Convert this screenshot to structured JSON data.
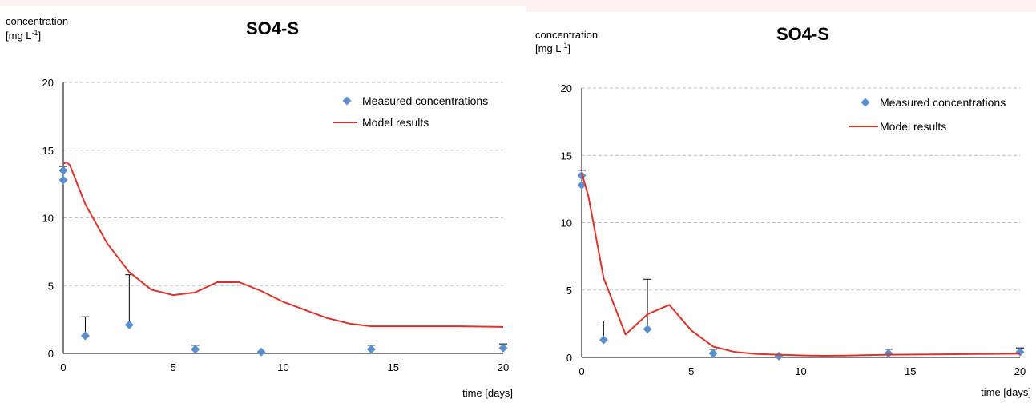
{
  "colors": {
    "measured": "#5b8fd0",
    "model": "#e0322a",
    "grid": "#bfbfbf",
    "axis": "#000000",
    "background": "#fdf1f1"
  },
  "chart_data": [
    {
      "type": "scatter",
      "title": "SO4-S",
      "ylabel_line1": "concentration",
      "ylabel_unit_prefix": "[mg L",
      "ylabel_unit_exp": "-1",
      "ylabel_unit_suffix": "]",
      "xlabel": "time [days]",
      "xlim": [
        0,
        20
      ],
      "ylim": [
        0,
        20
      ],
      "xticks": [
        0,
        5,
        10,
        15,
        20
      ],
      "yticks": [
        0,
        5,
        10,
        15,
        20
      ],
      "grid": "horizontal dashed",
      "legend_placement": "top-right",
      "series": [
        {
          "name": "Measured concentrations",
          "kind": "scatter",
          "marker": "diamond",
          "points": [
            {
              "x": 0,
              "y": 13.5,
              "err": 0.3
            },
            {
              "x": 0,
              "y": 12.8,
              "err": 0
            },
            {
              "x": 1,
              "y": 1.3,
              "err": 1.4
            },
            {
              "x": 3,
              "y": 2.1,
              "err": 3.7
            },
            {
              "x": 6,
              "y": 0.3,
              "err": 0.3
            },
            {
              "x": 9,
              "y": 0.1,
              "err": 0
            },
            {
              "x": 14,
              "y": 0.3,
              "err": 0.3
            },
            {
              "x": 20,
              "y": 0.4,
              "err": 0.3
            }
          ]
        },
        {
          "name": "Model results",
          "kind": "line",
          "points": [
            {
              "x": 0,
              "y": 14.0
            },
            {
              "x": 0.15,
              "y": 14.1
            },
            {
              "x": 0.3,
              "y": 13.9
            },
            {
              "x": 1,
              "y": 11.0
            },
            {
              "x": 2,
              "y": 8.1
            },
            {
              "x": 3,
              "y": 6.0
            },
            {
              "x": 4,
              "y": 4.7
            },
            {
              "x": 5,
              "y": 4.3
            },
            {
              "x": 6,
              "y": 4.5
            },
            {
              "x": 7,
              "y": 5.25
            },
            {
              "x": 8,
              "y": 5.25
            },
            {
              "x": 9,
              "y": 4.6
            },
            {
              "x": 10,
              "y": 3.8
            },
            {
              "x": 11,
              "y": 3.2
            },
            {
              "x": 12,
              "y": 2.6
            },
            {
              "x": 13,
              "y": 2.2
            },
            {
              "x": 14,
              "y": 2.0
            },
            {
              "x": 16,
              "y": 2.0
            },
            {
              "x": 18,
              "y": 2.0
            },
            {
              "x": 20,
              "y": 1.95
            }
          ]
        }
      ]
    },
    {
      "type": "scatter",
      "title": "SO4-S",
      "ylabel_line1": "concentration",
      "ylabel_unit_prefix": "[mg L",
      "ylabel_unit_exp": "-1",
      "ylabel_unit_suffix": "]",
      "xlabel": "time [days]",
      "xlim": [
        0,
        20
      ],
      "ylim": [
        0,
        20
      ],
      "xticks": [
        0,
        5,
        10,
        15,
        20
      ],
      "yticks": [
        0,
        5,
        10,
        15,
        20
      ],
      "grid": "horizontal dashed",
      "legend_placement": "top-right",
      "series": [
        {
          "name": "Measured concentrations",
          "kind": "scatter",
          "marker": "diamond",
          "points": [
            {
              "x": 0,
              "y": 13.5,
              "err": 0.4
            },
            {
              "x": 0,
              "y": 12.8,
              "err": 0
            },
            {
              "x": 1,
              "y": 1.3,
              "err": 1.4
            },
            {
              "x": 3,
              "y": 2.1,
              "err": 3.7
            },
            {
              "x": 6,
              "y": 0.3,
              "err": 0.3
            },
            {
              "x": 9,
              "y": 0.1,
              "err": 0
            },
            {
              "x": 14,
              "y": 0.3,
              "err": 0.3
            },
            {
              "x": 20,
              "y": 0.4,
              "err": 0.3
            }
          ]
        },
        {
          "name": "Model results",
          "kind": "line",
          "points": [
            {
              "x": 0,
              "y": 13.7
            },
            {
              "x": 0.3,
              "y": 12.0
            },
            {
              "x": 1,
              "y": 5.9
            },
            {
              "x": 2,
              "y": 1.7
            },
            {
              "x": 3,
              "y": 3.2
            },
            {
              "x": 4,
              "y": 3.9
            },
            {
              "x": 5,
              "y": 2.0
            },
            {
              "x": 6,
              "y": 0.8
            },
            {
              "x": 7,
              "y": 0.4
            },
            {
              "x": 8,
              "y": 0.25
            },
            {
              "x": 9,
              "y": 0.2
            },
            {
              "x": 10,
              "y": 0.15
            },
            {
              "x": 11,
              "y": 0.12
            },
            {
              "x": 12,
              "y": 0.13
            },
            {
              "x": 14,
              "y": 0.2
            },
            {
              "x": 16,
              "y": 0.22
            },
            {
              "x": 18,
              "y": 0.25
            },
            {
              "x": 20,
              "y": 0.28
            }
          ]
        }
      ]
    }
  ]
}
